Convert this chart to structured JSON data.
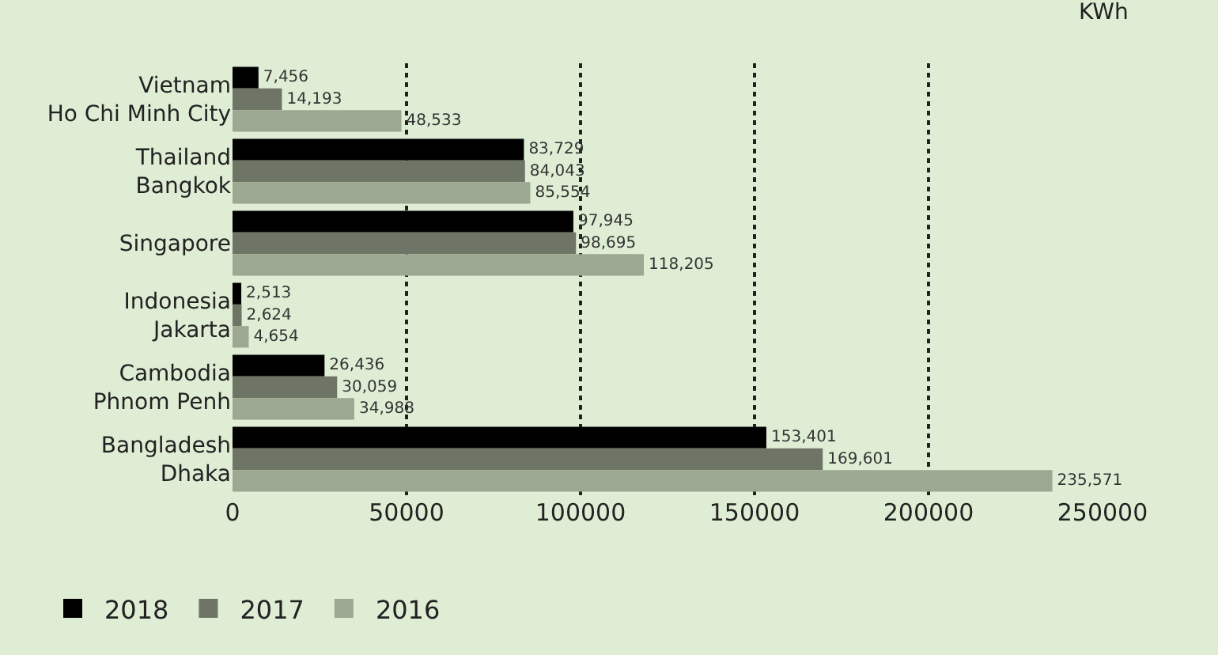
{
  "chart_data": {
    "type": "bar",
    "orientation": "horizontal",
    "xlabel": "KWh",
    "categories": [
      "Vietnam\nHo Chi Minh City",
      "Thailand\nBangkok",
      "Singapore",
      "Indonesia\nJakarta",
      "Cambodia\nPhnom Penh",
      "Bangladesh\nDhaka"
    ],
    "series": [
      {
        "name": "2018",
        "color": "#000000",
        "values": [
          7456,
          83729,
          97945,
          2513,
          26436,
          153401
        ],
        "value_labels": [
          "7,456",
          "83,729",
          "97,945",
          "2,513",
          "26,436",
          "153,401"
        ]
      },
      {
        "name": "2017",
        "color": "#6e7566",
        "values": [
          14193,
          84043,
          98695,
          2624,
          30059,
          169601
        ],
        "value_labels": [
          "14,193",
          "84,043",
          "98,695",
          "2,624",
          "30,059",
          "169,601"
        ]
      },
      {
        "name": "2016",
        "color": "#9ca892",
        "values": [
          48533,
          85554,
          118205,
          4654,
          34988,
          235571
        ],
        "value_labels": [
          "48,533",
          "85,554",
          "118,205",
          "4,654",
          "34,988",
          "235,571"
        ]
      }
    ],
    "xlim": [
      0,
      250000
    ],
    "xticks": [
      0,
      50000,
      100000,
      150000,
      200000,
      250000
    ],
    "grid": "x",
    "legend": "bottom left"
  }
}
